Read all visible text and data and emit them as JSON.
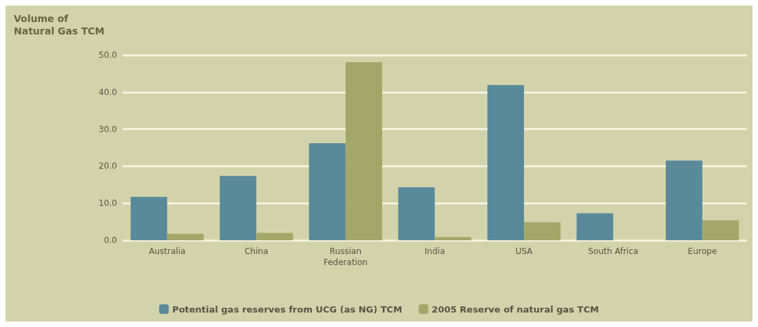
{
  "chart_data": {
    "type": "bar",
    "ylabel": "Volume of\nNatural Gas TCM",
    "categories": [
      "Australia",
      "China",
      "Russian\nFederation",
      "India",
      "USA",
      "South Africa",
      "Europe"
    ],
    "series": [
      {
        "name": "Potential gas reserves from UCG (as NG) TCM",
        "color": "#5a8a9a",
        "values": [
          11.7,
          17.4,
          26.2,
          14.3,
          41.9,
          7.3,
          21.5
        ]
      },
      {
        "name": "2005 Reserve of natural gas TCM",
        "color": "#a3a86a",
        "values": [
          1.7,
          2.0,
          48.1,
          0.9,
          4.9,
          0,
          5.4
        ]
      }
    ],
    "ylim": [
      0,
      50
    ],
    "yticks": [
      {
        "value": 0,
        "label": "0.0"
      },
      {
        "value": 10,
        "label": "10.0"
      },
      {
        "value": 20,
        "label": "20.0"
      },
      {
        "value": 30,
        "label": "30.0"
      },
      {
        "value": 40,
        "label": "40.0"
      },
      {
        "value": 50,
        "label": "50.0"
      }
    ],
    "grid": "y",
    "legend": "bottom"
  }
}
